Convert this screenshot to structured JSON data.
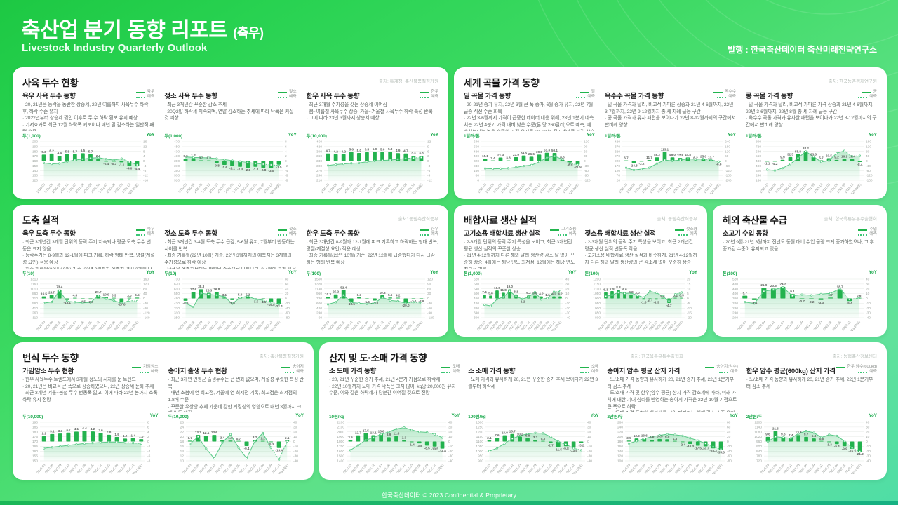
{
  "header": {
    "title": "축산업 분기 동향 리포트",
    "title_suffix": "(축우)",
    "subtitle": "Livestock Industry Quarterly Outlook",
    "publisher": "발행 : 한국축산데이터 축산미래전략연구소"
  },
  "footer": {
    "text": "한국축산데이터 © 2023 Confidential & Proprietary"
  },
  "colors": {
    "header_green": "#1dc843",
    "accent_green": "#16a84a",
    "bar_green": "#23b24e",
    "line_green": "#57c985",
    "grid": "#e6eae6"
  },
  "legend_forecast_label": "예측",
  "yoy_axis_label": "YoY",
  "categories": [
    "2020.03",
    "2020.06",
    "2020.09",
    "2020.12",
    "2021.03",
    "2021.06",
    "2021.09",
    "2021.12",
    "2022.03",
    "2022.06",
    "2022.09",
    "2022.12",
    "2023.03(E)"
  ],
  "cards": [
    {
      "title": "사육 두수 현황",
      "source": "출처: 통계청, 축산물품질평가원"
    },
    {
      "title": "세계 곡물 가격 동향",
      "source": "출처: 한국농촌경제연구원"
    },
    {
      "title": "도축 실적",
      "source": "출처: 농림축산식품부"
    },
    {
      "title": "배합사료 생산 실적",
      "source": "출처: 농림축산식품부"
    },
    {
      "title": "해외 축산물 수급",
      "source": "출처: 한국육류유통수출협회"
    },
    {
      "title": "번식 두수 동향",
      "source": "출처: 축산물품질평가원"
    },
    {
      "title": "산지 및 도·소매 가격 동향",
      "source": "출처: 농협축산정보센터",
      "source_mid": "출처: 한국육류유통수출협회"
    }
  ],
  "chart_data": [
    {
      "type": "bar+line",
      "title": "육우 사육 두수 동향",
      "series_label": "육우",
      "unit": "두(1,000)",
      "bullets": [
        "20, 21년은 등락을 동반한 상승세, 22년 여름까지 사육두수 하락 후, 하락 수준 유지",
        "2022년부터 상승세 꺾인 이후로 두 수 하락 횡보 유지 예상",
        "기저효과로 최근 12월 하락폭 커보이나 매년 말 감소하는 일반적 패턴 수준"
      ],
      "yticks": [
        200,
        190,
        180,
        170,
        160,
        150,
        140,
        130,
        120
      ],
      "yoy_ticks": [
        16,
        12,
        8,
        4,
        0,
        -4,
        -8,
        -12,
        -16
      ],
      "levels": [
        156,
        154,
        155,
        159,
        162,
        164,
        166,
        167,
        164,
        162,
        165,
        158,
        152
      ],
      "yoy": [
        5.3,
        6.2,
        4.4,
        5.8,
        5.7,
        6.5,
        5.7,
        2.0,
        -0.4,
        -0.3,
        -1.1,
        -4.0,
        -4.4
      ]
    },
    {
      "type": "bar+line",
      "title": "젖소 사육 두수 동향",
      "series_label": "젖소",
      "unit": "두(1,000)",
      "bullets": [
        "최근 3개년간 꾸준한 감소 추세",
        "20Q2말 하락세 지속되며, 연말 감소하는 추세에 따라 낙폭은 커질 것 예상"
      ],
      "yticks": [
        470,
        450,
        430,
        410,
        390,
        370,
        350,
        330,
        310
      ],
      "yoy_ticks": [
        8,
        6,
        4,
        2,
        0,
        -2,
        -4,
        -6,
        -8
      ],
      "levels": [
        407,
        405,
        404,
        403,
        400,
        396,
        392,
        388,
        384,
        380,
        377,
        374,
        372
      ],
      "yoy": [
        0.9,
        1.2,
        0.3,
        0.2,
        -0.8,
        -1.6,
        -2.1,
        -2.4,
        -2.8,
        -2.4,
        -2.8,
        -3.0,
        -1.5
      ]
    },
    {
      "type": "bar+line",
      "title": "한우 사육 두수 동향",
      "series_label": "한우",
      "unit": "두(10,000)",
      "bullets": [
        "최근 3개월 주기성을 갖는 상승세 이어짐",
        "봄~여름철 사육두수 상승, 가을~겨울철 사육두수 하락 특성 반복",
        "그에 따라 23년 3월까지 상승세 예상"
      ],
      "yticks": [
        450,
        420,
        390,
        360,
        330,
        300,
        270,
        240,
        210
      ],
      "yoy_ticks": [
        12,
        9,
        6,
        3,
        0,
        -3,
        -6,
        -9,
        -12
      ],
      "levels": [
        302,
        308,
        312,
        316,
        318,
        325,
        331,
        334,
        336,
        341,
        346,
        349,
        352
      ],
      "yoy": [
        4.7,
        4.2,
        4.2,
        5.6,
        5.0,
        5.5,
        5.9,
        5.6,
        5.8,
        4.9,
        4.7,
        3.3,
        3.3
      ]
    },
    {
      "type": "bar+line",
      "title": "밀 곡물 가격 동향",
      "series_label": "밀",
      "unit": "1달러/톤",
      "bullets": [
        "20-21년 증가 유지, 22년 3월 큰 폭 증가, 6월 증가 유지, 22년 7월 급증 직전 수준 회복",
        "22년 3-6월까지 가격이 급증한 데이터 대응 위해, 23년 1분기 예측치는 22년 4분기 가격 대비 낮은 수준(톤 당 260달러)으로 예측, 예측치보다는 높은 수준의 가격 유지로 20, 21년 증가세만큼 가격 상승 예상(톤 당 320달러 수준)"
      ],
      "yticks": [
        640,
        560,
        480,
        400,
        320,
        240,
        160,
        80,
        0
      ],
      "yoy_ticks": [
        120,
        90,
        60,
        30,
        0,
        -30,
        -60,
        -90,
        -120
      ],
      "levels": [
        196,
        190,
        194,
        200,
        214,
        238,
        252,
        305,
        375,
        400,
        350,
        280,
        258
      ],
      "yoy": [
        15.1,
        2.4,
        21.9,
        3.3,
        23.9,
        34.6,
        26.6,
        39.8,
        51.3,
        50.1,
        8.6,
        -8.9,
        -21.9
      ]
    },
    {
      "type": "bar+line",
      "title": "옥수수 곡물 가격 동향",
      "series_label": "옥수수",
      "unit": "1달러/톤",
      "bullets": [
        "밀 곡물 가격과 달리, 비교적 가파른 상승과 21년 4-6월까지, 22년 3-7월까지, 22년 9-12월까지 총 세 차례 급등 구간",
        "콩 곡물 가격과 유사 패턴을 보이다가 22년 8-12월까지의 구간에서 반비례 양상"
      ],
      "yticks": [
        420,
        370,
        320,
        270,
        220,
        170,
        120,
        70,
        20
      ],
      "yoy_ticks": [
        240,
        180,
        120,
        60,
        0,
        -60,
        -120,
        -180,
        -240
      ],
      "levels": [
        150,
        126,
        136,
        150,
        194,
        230,
        222,
        230,
        244,
        238,
        242,
        232,
        214
      ],
      "yoy": [
        6.7,
        -24.3,
        -3.2,
        11.7,
        46.2,
        113.1,
        46.0,
        37.8,
        44.8,
        6.2,
        25.6,
        13.7,
        -8.8
      ]
    },
    {
      "type": "bar+line",
      "title": "콩 곡물 가격 동향",
      "series_label": "콩",
      "unit": "1달러/톤",
      "bullets": [
        "밀 곡물 가격과 달리, 비교적 가파른 가격 상승과 21년 4-6월까지, 22년 3-6월까지, 22년 8월 총 세 차례 급등 구간",
        "옥수수 곡물 가격과 유사한 패턴을 보이다가 22년 8-12월까지의 구간에서 반비례 양상"
      ],
      "yticks": [
        800,
        720,
        640,
        560,
        480,
        400,
        320,
        240,
        160
      ],
      "yoy_ticks": [
        160,
        120,
        80,
        40,
        0,
        -40,
        -80,
        -120,
        -160
      ],
      "levels": [
        336,
        322,
        362,
        430,
        528,
        640,
        552,
        466,
        486,
        610,
        648,
        560,
        566
      ],
      "yoy": [
        -1.1,
        -4.2,
        9.9,
        32.5,
        55.8,
        84.2,
        33.8,
        5.7,
        23.5,
        9.2,
        16.1,
        16.4,
        -8.4
      ]
    },
    {
      "type": "bar+line",
      "title": "육우 도축 두수 동향",
      "series_label": "육우",
      "unit": "두(10)",
      "bullets": [
        "최근 3개년간 3개월 단위의 등락 주기 지속되나 평균 도축 두수 변동은 크지 않음",
        "등락주기는 8-9월과 12-1월에 피크 기록, 하락 형태 반복, 명절(계절성 요인) 적용 예상",
        "최종 기록월(22년 10월) 기준, 23년 3월까지 예측치 역시 3개월 단위의 등락주기 예상"
      ],
      "yticks": [
        1310,
        1160,
        1010,
        860,
        710,
        560,
        410,
        260,
        110
      ],
      "yoy_ticks": [
        160,
        120,
        80,
        40,
        0,
        -40,
        -80,
        -120,
        -160
      ],
      "levels": [
        565,
        600,
        950,
        620,
        595,
        575,
        588,
        790,
        700,
        645,
        560,
        645,
        625
      ],
      "yoy": [
        16.5,
        28.7,
        73.4,
        -13.1,
        4.3,
        -4.5,
        -9.4,
        29.7,
        10.0,
        3.3,
        -27.8,
        3.0,
        6.5
      ]
    },
    {
      "type": "bar+line",
      "title": "젖소 도축 두수 동향",
      "series_label": "젖소",
      "unit": "두(10)",
      "bullets": [
        "최근 3개년간 3-4월 도축 두수 급감, 5-6월 유지, 7월부터 반등하는 사이클 반복",
        "최종 기록월(22년 10월) 기준, 22년 3월까지의 예측치는 3개월의 주기성으로 하락 예상",
        "낙폭은 예측치보다는 완화된 수준으로 나타나고, 3-4월에 크게 사육 감소 있을 것 예상"
      ],
      "yticks": [
        730,
        670,
        610,
        550,
        490,
        430,
        370,
        310,
        250
      ],
      "yoy_ticks": [
        80,
        60,
        40,
        20,
        0,
        -20,
        -40,
        -60,
        -80
      ],
      "levels": [
        430,
        385,
        555,
        540,
        532,
        512,
        425,
        498,
        518,
        480,
        468,
        442,
        420
      ],
      "yoy": [
        -9.9,
        27.6,
        38.3,
        23.3,
        26.8,
        3.1,
        -6.8,
        5.9,
        5.2,
        -3.5,
        -4.5,
        -16.5,
        -22.4
      ]
    },
    {
      "type": "bar+line",
      "title": "한우 도축 두수 동향",
      "series_label": "한우",
      "unit": "두(100)",
      "bullets": [
        "최근 3개년간 8-9월과 12-1월에 피크 기록하고 하락하는 형태 반복, 명절(계절성 요인) 적용 예상",
        "최종 기록월(22년 10월) 기준, 22년 12월에 급증했다가 다시 급감하는 형태 반복 예상"
      ],
      "yticks": [
        1500,
        1320,
        1140,
        960,
        780,
        600,
        420,
        240,
        60
      ],
      "yoy_ticks": [
        120,
        90,
        60,
        30,
        0,
        -30,
        -60,
        -90,
        -120
      ],
      "levels": [
        560,
        640,
        905,
        625,
        600,
        582,
        602,
        820,
        705,
        680,
        600,
        645,
        605
      ],
      "yoy": [
        10.3,
        25.2,
        52.4,
        -19.5,
        6.3,
        -5.6,
        -13.0,
        19.8,
        5.6,
        4.2,
        -29.0,
        -3.0,
        -2.9
      ]
    },
    {
      "type": "bar+line",
      "title": "고기소용 배합사료 생산 실적",
      "series_label": "고기소용",
      "unit": "톤(1,000)",
      "bullets": [
        "2-3개월 단위의 등락 주기 특성을 보이고, 최근 3개년간 평균 생산 실적의 꾸준한 상승",
        "21년 4-12월까지 다른 해와 달리 생산량 감소 달 없이 꾸준히 상승, 4월에는 해당 년도 최저점, 12월에는 해당 년도 최고점 기록"
      ],
      "yticks": [
        620,
        580,
        540,
        500,
        460,
        420,
        380,
        340,
        300
      ],
      "yoy_ticks": [
        40,
        30,
        20,
        10,
        0,
        -10,
        -20,
        -30,
        -40
      ],
      "levels": [
        408,
        398,
        455,
        472,
        520,
        478,
        455,
        472,
        512,
        452,
        462,
        515,
        520
      ],
      "yoy": [
        7.4,
        5.8,
        16.5,
        11.8,
        19.0,
        8.1,
        -1.2,
        6.2,
        5.6,
        4.2,
        1.6,
        4.2,
        4.2
      ]
    },
    {
      "type": "bar+line",
      "title": "젖소용 배합사료 생산 실적",
      "series_label": "젖소용",
      "unit": "톤(100)",
      "bullets": [
        "2-3개월 단위의 등락 주기 특성을 보이고, 최근 2개년간 평균 생산 실적 변동폭 작음",
        "고기소용 배합사료 생산 실적과 비슷하게, 21년 4-12월까지 다른 해와 달리 생산량의 큰 감소세 없이 꾸준히 상승"
      ],
      "yticks": [
        1200,
        1150,
        1100,
        1050,
        1000,
        950,
        900,
        850,
        800
      ],
      "yoy_ticks": [
        20,
        15,
        10,
        5,
        0,
        -5,
        -10,
        -15,
        -20
      ],
      "levels": [
        1022,
        1036,
        1062,
        1052,
        1056,
        1032,
        1010,
        1072,
        1060,
        1022,
        972,
        1042,
        1062
      ],
      "yoy": [
        6.3,
        7.6,
        8.8,
        6.6,
        3.8,
        3.0,
        -1.3,
        -0.1,
        -1.3,
        0.2,
        -4.7,
        0.4,
        0.5
      ]
    },
    {
      "type": "bar+line",
      "title": "소고기 수입 동향",
      "series_label": "수입",
      "unit": "톤(100)",
      "bullets": [
        "20년 9월-21년 3월까지 전년도 동월 대비 수입 물량 크게 증가하였으나, 그 후 증가된 수준이 유지되고 있음"
      ],
      "yticks": [
        520,
        480,
        440,
        400,
        360,
        320,
        280,
        240,
        200
      ],
      "yoy_ticks": [
        40,
        30,
        20,
        10,
        0,
        -10,
        -20,
        -30,
        -40
      ],
      "levels": [
        330,
        318,
        420,
        432,
        452,
        382,
        392,
        386,
        396,
        402,
        442,
        352,
        362
      ],
      "yoy": [
        5.7,
        -3.4,
        21.9,
        20.6,
        24.2,
        9.1,
        -0.7,
        -2.2,
        -3.3,
        1.7,
        18.7,
        -5.4,
        0.6
      ]
    },
    {
      "type": "bar+line",
      "title": "가임암소 두수 현황",
      "series_label": "가임암소",
      "unit": "두(10,000)",
      "bullets": [
        "한우 사육두수 트렌드에서 3개월 정도의 시차를 둔 트렌드",
        "20, 21년은 비교적 큰 폭으로 상승하였으나, 22년 상승세 둔화 추세",
        "최근 3개년 겨울~봄철 두수 변동폭 없고, 이에 따라 23년 봄까지 소폭 하락 유지 전망"
      ],
      "yticks": [
        190,
        185,
        180,
        175,
        170,
        165,
        160,
        155,
        150
      ],
      "yoy_ticks": [
        8,
        6,
        4,
        2,
        0,
        -2,
        -4,
        -6,
        -8
      ],
      "levels": [
        163,
        164,
        165,
        166,
        167,
        168,
        168.5,
        169,
        169.5,
        169.5,
        169,
        168.5,
        168
      ],
      "yoy": [
        2.2,
        3.1,
        3.3,
        3.7,
        4.1,
        4.4,
        4.2,
        3.6,
        2.8,
        1.9,
        1.2,
        1.4,
        1.0
      ]
    },
    {
      "type": "bar+line",
      "title": "송아지 출생 두수 현황",
      "series_label": "송아지",
      "unit": "두(10,000)",
      "bullets": [
        "최근 3개년 연평균 출생두수는 큰 변화 없으며, 계절성 뚜렷한 특징 반복",
        "매년 초봄에 연 최고점, 겨울에 연 최저점 기록, 최고점은 최저점의 1.8배 수준",
        "꾸준한 우상향 추세 가운데 강한 계절성의 영향으로 내년 3월까지 크게 반등 예정"
      ],
      "yticks": [
        26,
        24,
        22,
        20,
        18,
        16,
        14,
        12,
        10
      ],
      "yoy_ticks": [
        40,
        30,
        20,
        10,
        0,
        -10,
        -20,
        -30,
        -40
      ],
      "levels": [
        17,
        20,
        15,
        11,
        17.5,
        21,
        15.5,
        11,
        18,
        21.5,
        15.5,
        10.5,
        18
      ],
      "yoy": [
        1.7,
        13.7,
        12.1,
        13.6,
        2.4,
        1.9,
        0.7,
        -9.4,
        3.2,
        1.2,
        -0.3,
        -13.4,
        2.1
      ]
    },
    {
      "type": "bar+line",
      "title": "소 도매 가격 동향",
      "series_label": "도매",
      "unit": "10원/kg",
      "bullets": [
        "20, 21년 꾸준한 증가 추세, 21년 4분기 기점으로 하락세",
        "22년 10월까지 도매 가격 낙폭은 크지 않아, kg당 20,000원 유지 수준, 이와 같은 하락세가 당분간 이어질 것으로 전망"
      ],
      "yticks": [
        2200,
        2100,
        2000,
        1900,
        1800,
        1700,
        1600,
        1500,
        1400
      ],
      "yoy_ticks": [
        40,
        30,
        20,
        10,
        0,
        -10,
        -20,
        -30,
        -40
      ],
      "levels": [
        1620,
        1720,
        1830,
        1880,
        1950,
        2000,
        2060,
        2090,
        2040,
        2000,
        1990,
        1950,
        1880
      ],
      "yoy": [
        3.5,
        12.7,
        17.5,
        13.1,
        15.6,
        8.9,
        11.3,
        2.3,
        -1.4,
        -3.8,
        -8.5,
        -10.5,
        -14.8
      ]
    },
    {
      "type": "bar+line",
      "title": "소 소매 가격 동향",
      "series_label": "소매",
      "unit": "100원/kg",
      "bullets": [
        "도매 가격과 유사하게 20, 21년 꾸준한 증가 추세 보이다가 22년 3월부터 하락세"
      ],
      "yticks": [
        1300,
        1250,
        1200,
        1150,
        1100,
        1050,
        1000,
        950,
        900
      ],
      "yoy_ticks": [
        40,
        30,
        20,
        10,
        0,
        -10,
        -20,
        -30,
        -40
      ],
      "levels": [
        1000,
        1030,
        1080,
        1130,
        1160,
        1180,
        1190,
        1185,
        1150,
        1100,
        1070,
        1030,
        1010
      ],
      "yoy": [
        2.1,
        7.6,
        13.0,
        15.7,
        10.2,
        6.8,
        3.2,
        0.3,
        -2.7,
        -11.5,
        -9.8,
        -13.5,
        -3.2
      ]
    },
    {
      "type": "bar+line",
      "title": "송아지 암수 평균 산지 가격",
      "series_label": "송아지(암수)",
      "unit": "2만원/두",
      "bullets": [
        "도/소매 가격 동향과 유사하게 20, 21년 증가 추세, 22년 1분기부터 감소 추세",
        "도/소매 가격 및 한우(암수 평균) 산지 가격 감소세에 따라, 미래 가치에 대한 기대 심리를 반영하는 송아지 가격은 22년 10월 기점으로 큰 폭으로 하락",
        "소/도매 가격 동향이 회복세를 보일 때까지는 현재 감소 수준 유지 및 소폭 하락 예상"
      ],
      "yticks": [
        260,
        240,
        220,
        200,
        180,
        160,
        140,
        120,
        100
      ],
      "yoy_ticks": [
        80,
        60,
        40,
        20,
        0,
        -20,
        -40,
        -60,
        -80
      ],
      "levels": [
        172,
        182,
        192,
        200,
        206,
        210,
        208,
        204,
        194,
        184,
        172,
        158,
        148
      ],
      "yoy": [
        3.5,
        12.9,
        13.6,
        6.6,
        10.5,
        9.5,
        1.3,
        -2.4,
        -10.3,
        -17.5,
        -20.3,
        -28.3,
        -35.6
      ]
    },
    {
      "type": "bar+line",
      "title": "한우 암수 평균(600kg) 산지 가격",
      "series_label": "한우 암수(600kg)",
      "unit": "2만원/두",
      "bullets": [
        "도/소매 가격 동향과 유사하게 20, 21년 증가 추세, 22년 1분기부터 감소 추세"
      ],
      "yticks": [
        1200,
        1140,
        1080,
        1020,
        960,
        900,
        840,
        780,
        720
      ],
      "yoy_ticks": [
        40,
        30,
        20,
        10,
        0,
        -10,
        -20,
        -30,
        -40
      ],
      "levels": [
        960,
        1020,
        1010,
        1000,
        1060,
        1090,
        1070,
        1010,
        1045,
        1030,
        965,
        880,
        835
      ],
      "yoy": [
        9.6,
        21.6,
        9.6,
        7.4,
        13.3,
        9.7,
        6.3,
        0.8,
        -1.3,
        -5.4,
        -9.9,
        -15.3,
        -21.2
      ]
    }
  ]
}
